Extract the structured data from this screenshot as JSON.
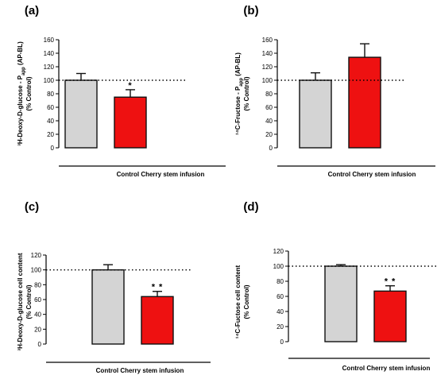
{
  "chart_data": [
    {
      "panel": "(a)",
      "type": "bar",
      "categories": [
        "Control",
        "Cherry stem infusion"
      ],
      "values": [
        100,
        75
      ],
      "errors": [
        10,
        11
      ],
      "significance": [
        "",
        "*"
      ],
      "colors": [
        "#d4d4d4",
        "#ee1111"
      ],
      "ylabel_lines": [
        "³H-Deoxy-D-glucose - P(AP-BL)",
        "(% Control)"
      ],
      "ylabel_parts": [
        [
          "³H-Deoxy-D-glucose - P",
          "app",
          " (AP-BL)"
        ],
        [
          "(% Control)"
        ]
      ],
      "yticks": [
        0,
        20,
        40,
        60,
        80,
        100,
        120,
        140,
        160
      ],
      "ylim": [
        0,
        160
      ],
      "reference_line": 100
    },
    {
      "panel": "(b)",
      "type": "bar",
      "categories": [
        "Control",
        "Cherry stem infusion"
      ],
      "values": [
        100,
        134
      ],
      "errors": [
        11,
        20
      ],
      "significance": [
        "",
        ""
      ],
      "colors": [
        "#d4d4d4",
        "#ee1111"
      ],
      "ylabel_lines": [
        "¹⁴C-Fructose - P(AP-BL)",
        "(% Control)"
      ],
      "ylabel_parts": [
        [
          "¹⁴C-Fructose - P",
          "app",
          " (AP-BL)"
        ],
        [
          "(% Control)"
        ]
      ],
      "yticks": [
        0,
        20,
        40,
        60,
        80,
        100,
        120,
        140,
        160
      ],
      "ylim": [
        0,
        160
      ],
      "reference_line": 100
    },
    {
      "panel": "(c)",
      "type": "bar",
      "categories": [
        "Control",
        "Cherry stem infusion"
      ],
      "values": [
        100,
        64
      ],
      "errors": [
        7,
        7
      ],
      "significance": [
        "",
        "**"
      ],
      "colors": [
        "#d4d4d4",
        "#ee1111"
      ],
      "ylabel_lines": [
        "³H-Deoxy-D-glucose cell content",
        "(% Control)"
      ],
      "ylabel_parts": [
        [
          "³H-Deoxy-D-glucose cell content"
        ],
        [
          "(% Control)"
        ]
      ],
      "yticks": [
        0,
        20,
        40,
        60,
        80,
        100,
        120
      ],
      "ylim": [
        0,
        120
      ],
      "reference_line": 100
    },
    {
      "panel": "(d)",
      "type": "bar",
      "categories": [
        "Control",
        "Cherry stem infusion"
      ],
      "values": [
        100,
        67
      ],
      "errors": [
        2,
        7
      ],
      "significance": [
        "",
        "**"
      ],
      "colors": [
        "#d4d4d4",
        "#ee1111"
      ],
      "ylabel_lines": [
        "¹⁴C-Fuctose cell content",
        "(% Control)"
      ],
      "ylabel_parts": [
        [
          "¹⁴C-Fuctose cell content"
        ],
        [
          "(% Control)"
        ]
      ],
      "yticks": [
        0,
        20,
        40,
        60,
        80,
        100,
        120
      ],
      "ylim": [
        0,
        120
      ],
      "reference_line": 100
    }
  ]
}
